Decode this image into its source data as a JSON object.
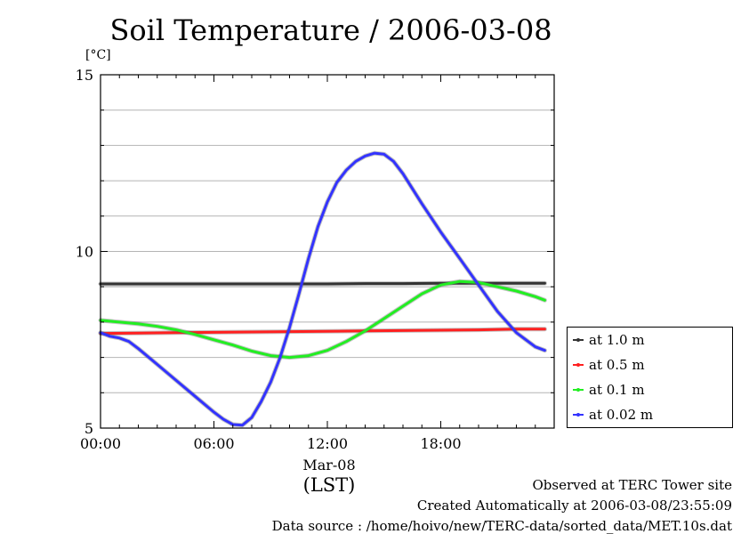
{
  "title": "Soil Temperature / 2006-03-08",
  "unit": "[°C]",
  "date_label": "Mar-08",
  "tz_label": "(LST)",
  "footer": {
    "line1": "Observed at TERC Tower site",
    "line2": "Created Automatically at 2006-03-08/23:55:09",
    "line3": "Data source : /home/hoivo/new/TERC-data/sorted_data/MET.10s.dat"
  },
  "chart_data": {
    "type": "line",
    "title": "Soil Temperature / 2006-03-08",
    "xlabel": "(LST)",
    "ylabel": "[°C]",
    "xlim": [
      0,
      24
    ],
    "ylim": [
      5,
      15
    ],
    "x_ticks": [
      {
        "value": 0,
        "label": "00:00"
      },
      {
        "value": 6,
        "label": "06:00"
      },
      {
        "value": 12,
        "label": "12:00"
      },
      {
        "value": 18,
        "label": "18:00"
      }
    ],
    "y_ticks": [
      {
        "value": 5,
        "label": "5"
      },
      {
        "value": 10,
        "label": "10"
      },
      {
        "value": 15,
        "label": "15"
      }
    ],
    "grid": true,
    "legend_position": "right",
    "series": [
      {
        "name": "at 1.0 m",
        "color": "#333333",
        "x": [
          0,
          2,
          4,
          6,
          8,
          10,
          12,
          14,
          16,
          18,
          20,
          22,
          23.5
        ],
        "y": [
          9.08,
          9.08,
          9.08,
          9.08,
          9.08,
          9.08,
          9.08,
          9.09,
          9.09,
          9.1,
          9.1,
          9.1,
          9.1
        ]
      },
      {
        "name": "at 0.5 m",
        "color": "#ff2020",
        "x": [
          0,
          2,
          4,
          6,
          8,
          10,
          12,
          14,
          16,
          18,
          20,
          22,
          23.5
        ],
        "y": [
          7.68,
          7.69,
          7.7,
          7.71,
          7.72,
          7.73,
          7.74,
          7.75,
          7.76,
          7.77,
          7.78,
          7.8,
          7.8
        ]
      },
      {
        "name": "at 0.1 m",
        "color": "#22ee22",
        "x": [
          0,
          1,
          2,
          3,
          4,
          5,
          6,
          7,
          8,
          9,
          10,
          11,
          12,
          13,
          14,
          15,
          16,
          17,
          18,
          19,
          20,
          21,
          22,
          23,
          23.5
        ],
        "y": [
          8.05,
          8.0,
          7.95,
          7.88,
          7.78,
          7.65,
          7.5,
          7.35,
          7.18,
          7.05,
          7.0,
          7.05,
          7.2,
          7.45,
          7.75,
          8.1,
          8.45,
          8.8,
          9.05,
          9.15,
          9.12,
          9.0,
          8.88,
          8.72,
          8.62
        ]
      },
      {
        "name": "at 0.02 m",
        "color": "#3333ff",
        "x": [
          0,
          0.5,
          1,
          1.5,
          2,
          3,
          4,
          5,
          6,
          6.5,
          7,
          7.5,
          8,
          8.5,
          9,
          9.5,
          10,
          10.5,
          11,
          11.5,
          12,
          12.5,
          13,
          13.5,
          14,
          14.5,
          15,
          15.5,
          16,
          17,
          18,
          19,
          20,
          21,
          22,
          23,
          23.5
        ],
        "y": [
          7.7,
          7.6,
          7.55,
          7.45,
          7.25,
          6.8,
          6.35,
          5.9,
          5.45,
          5.25,
          5.1,
          5.08,
          5.3,
          5.75,
          6.3,
          7.0,
          7.85,
          8.8,
          9.8,
          10.7,
          11.4,
          11.95,
          12.3,
          12.55,
          12.7,
          12.78,
          12.75,
          12.55,
          12.2,
          11.35,
          10.55,
          9.8,
          9.05,
          8.3,
          7.7,
          7.3,
          7.2
        ]
      }
    ]
  }
}
